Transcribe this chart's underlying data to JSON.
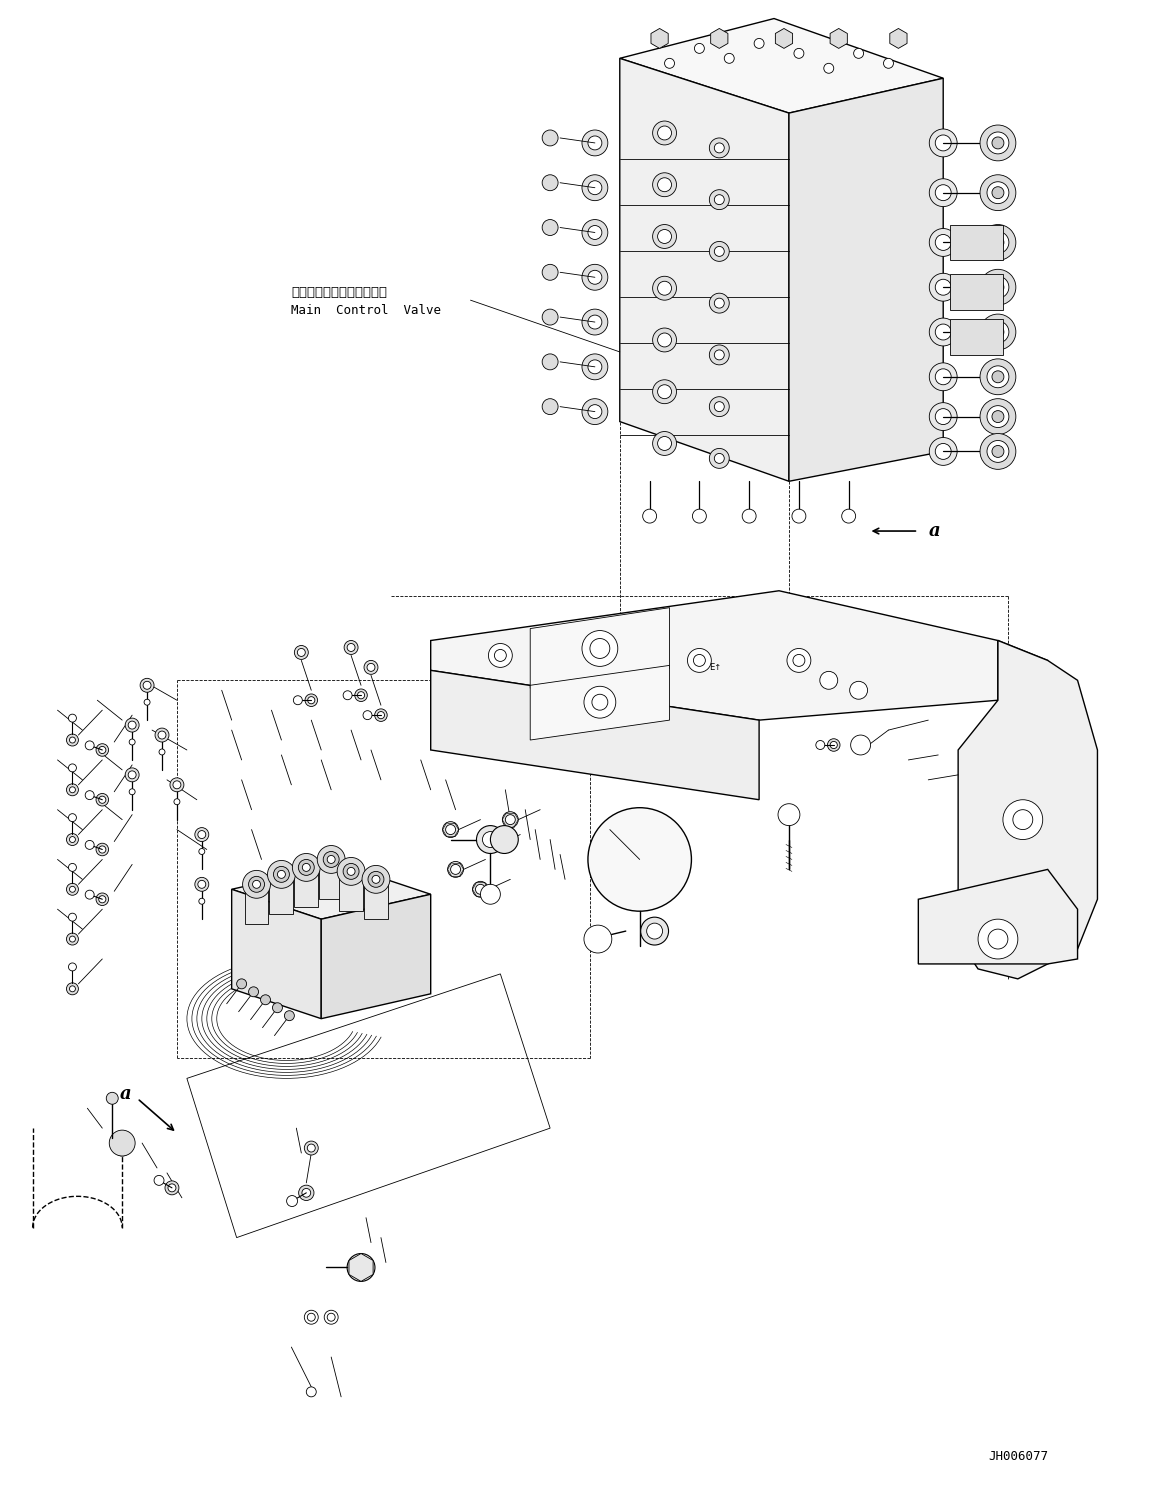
{
  "background_color": "#ffffff",
  "fig_width": 11.49,
  "fig_height": 14.91,
  "dpi": 100,
  "part_code": "JH006077",
  "label_japanese": "メインコントロールバルブ",
  "label_english": "Main  Control  Valve",
  "line_color": "#000000",
  "text_color": "#000000",
  "lw_main": 1.0,
  "lw_thin": 0.6,
  "lw_thick": 1.4
}
